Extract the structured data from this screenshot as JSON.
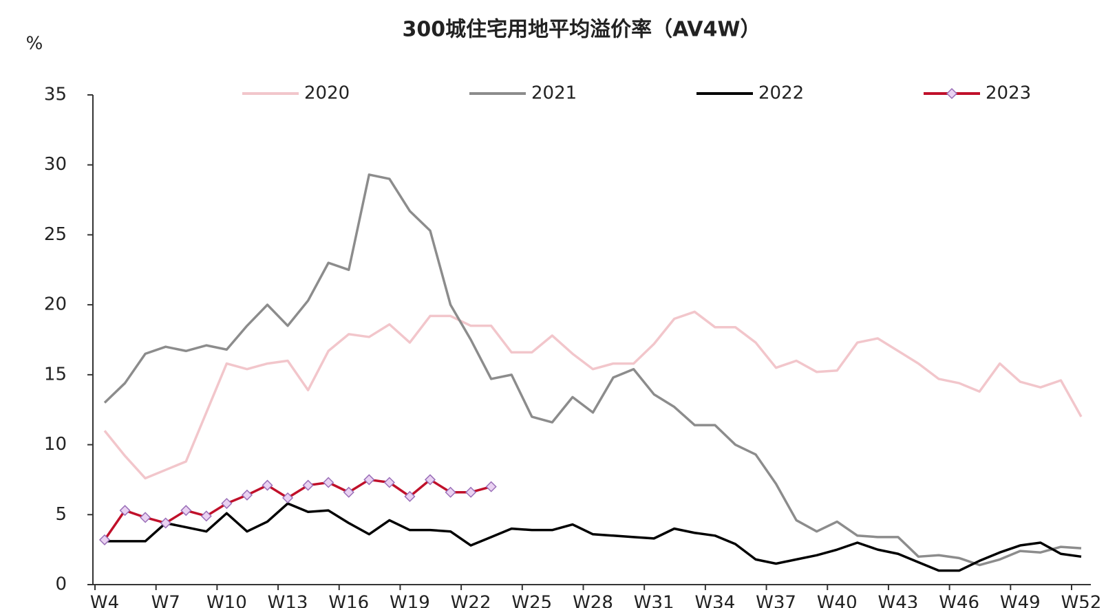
{
  "chart_data": {
    "type": "line",
    "title": "300城住宅用地平均溢价率（AV4W）",
    "y_label": "%",
    "categories": [
      "W4",
      null,
      null,
      "W7",
      null,
      null,
      "W10",
      null,
      null,
      "W13",
      null,
      null,
      "W16",
      null,
      null,
      "W19",
      null,
      null,
      "W22",
      null,
      null,
      "W25",
      null,
      null,
      "W28",
      null,
      null,
      "W31",
      null,
      null,
      "W34",
      null,
      null,
      "W37",
      null,
      null,
      "W40",
      null,
      null,
      "W43",
      null,
      null,
      "W46",
      null,
      null,
      "W49",
      null,
      null,
      "W52"
    ],
    "ylim": [
      0,
      35
    ],
    "yticks": [
      0,
      5,
      10,
      15,
      20,
      25,
      30,
      35
    ],
    "grid": false,
    "legend": "top",
    "series": [
      {
        "name": "2020",
        "color": "#f2c6cb",
        "values": [
          11,
          9.2,
          7.6,
          8.2,
          8.8,
          12.3,
          15.8,
          15.4,
          15.8,
          16,
          13.9,
          16.7,
          17.9,
          17.7,
          18.6,
          17.3,
          19.2,
          19.2,
          18.5,
          18.5,
          16.6,
          16.6,
          17.8,
          16.5,
          15.4,
          15.8,
          15.8,
          17.2,
          19,
          19.5,
          18.4,
          18.4,
          17.3,
          15.5,
          16,
          15.2,
          15.3,
          17.3,
          17.6,
          16.7,
          15.8,
          14.7,
          14.4,
          13.8,
          15.8,
          14.5,
          14.1,
          14.6,
          12.0
        ]
      },
      {
        "name": "2021",
        "color": "#8c8c8c",
        "values": [
          13,
          14.4,
          16.5,
          17,
          16.7,
          17.1,
          16.8,
          18.5,
          20,
          18.5,
          20.3,
          23,
          22.5,
          29.3,
          29,
          26.7,
          25.3,
          20,
          17.5,
          14.7,
          15,
          12,
          11.6,
          13.4,
          12.3,
          14.8,
          15.4,
          13.6,
          12.7,
          11.4,
          11.4,
          10,
          9.3,
          7.2,
          4.6,
          3.8,
          4.5,
          3.5,
          3.4,
          3.4,
          2,
          2.1,
          1.9,
          1.4,
          1.8,
          2.4,
          2.3,
          2.7,
          2.6
        ]
      },
      {
        "name": "2022",
        "color": "#000000",
        "values": [
          3.1,
          3.1,
          3.1,
          4.4,
          4.1,
          3.8,
          5.1,
          3.8,
          4.5,
          5.8,
          5.2,
          5.3,
          4.4,
          3.6,
          4.6,
          3.9,
          3.9,
          3.8,
          2.8,
          3.4,
          4,
          3.9,
          3.9,
          4.3,
          3.6,
          3.5,
          3.4,
          3.3,
          4,
          3.7,
          3.5,
          2.9,
          1.8,
          1.5,
          1.8,
          2.1,
          2.5,
          3,
          2.5,
          2.2,
          1.6,
          1,
          1,
          1.7,
          2.3,
          2.8,
          3,
          2.2,
          2.0
        ]
      },
      {
        "name": "2023",
        "color": "#c0102a",
        "marker": "diamond",
        "marker_color": "#ead2f2",
        "values": [
          3.2,
          5.3,
          4.8,
          4.4,
          5.3,
          4.9,
          5.8,
          6.4,
          7.1,
          6.2,
          7.1,
          7.3,
          6.6,
          7.5,
          7.3,
          6.3,
          7.5,
          6.6,
          6.6,
          7.0,
          null,
          null,
          null,
          null,
          null,
          null,
          null,
          null,
          null,
          null,
          null,
          null,
          null,
          null,
          null,
          null,
          null,
          null,
          null,
          null,
          null,
          null,
          null,
          null,
          null,
          null,
          null,
          null,
          null
        ]
      }
    ]
  }
}
